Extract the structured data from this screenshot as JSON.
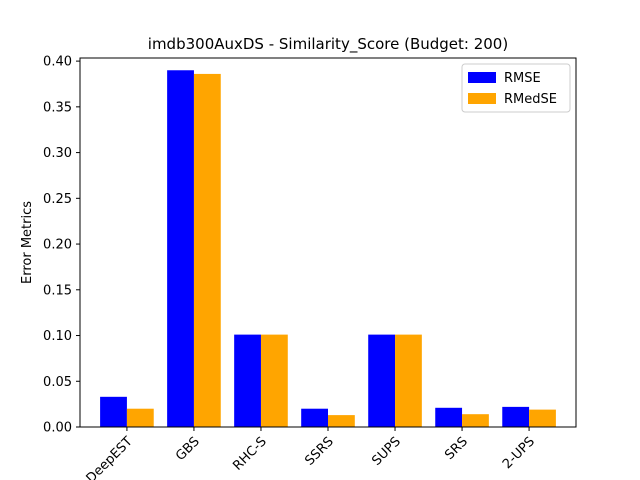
{
  "chart_data": {
    "type": "bar",
    "title": "imdb300AuxDS - Similarity_Score (Budget: 200)",
    "xlabel": "",
    "ylabel": "Error Metrics",
    "categories": [
      "DeepEST",
      "GBS",
      "RHC-S",
      "SSRS",
      "SUPS",
      "SRS",
      "2-UPS"
    ],
    "series": [
      {
        "name": "RMSE",
        "color": "#0000ff",
        "values": [
          0.033,
          0.39,
          0.101,
          0.02,
          0.101,
          0.021,
          0.022
        ]
      },
      {
        "name": "RMedSE",
        "color": "#ffa500",
        "values": [
          0.02,
          0.386,
          0.101,
          0.013,
          0.101,
          0.014,
          0.019
        ]
      }
    ],
    "ylim": [
      0,
      0.4
    ],
    "yticks": [
      "0.00",
      "0.05",
      "0.10",
      "0.15",
      "0.20",
      "0.25",
      "0.30",
      "0.35",
      "0.40"
    ],
    "grid": false,
    "legend_position": "top-right"
  }
}
